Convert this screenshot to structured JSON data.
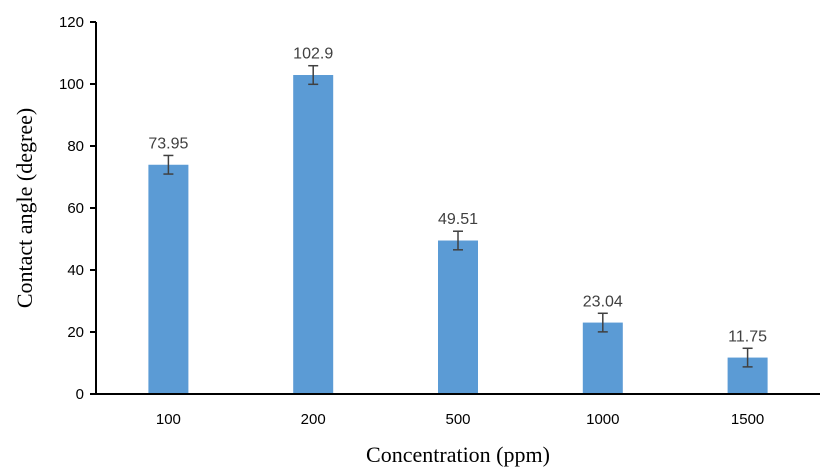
{
  "chart_data": {
    "type": "bar",
    "categories": [
      "100",
      "200",
      "500",
      "1000",
      "1500"
    ],
    "values": [
      73.95,
      102.9,
      49.51,
      23.04,
      11.75
    ],
    "error": [
      3,
      3,
      3,
      3,
      3
    ],
    "data_labels": [
      "73.95",
      "102.9",
      "49.51",
      "23.04",
      "11.75"
    ],
    "xlabel": "Concentration (ppm)",
    "ylabel": "Contact angle (degree)",
    "ylim": [
      0,
      120
    ],
    "yticks": [
      0,
      20,
      40,
      60,
      80,
      100,
      120
    ],
    "grid": false,
    "legend": "none",
    "bar_color": "#5B9BD5"
  }
}
